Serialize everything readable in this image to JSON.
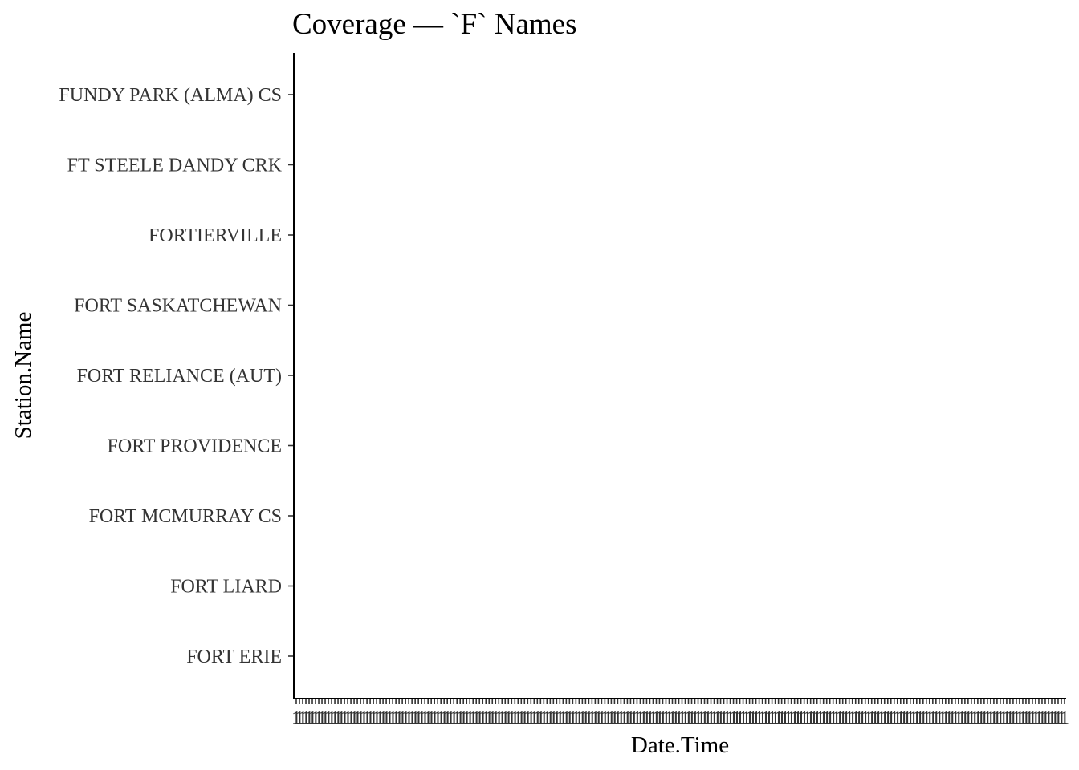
{
  "chart_data": {
    "type": "scatter",
    "title": "Coverage — `F` Names",
    "xlabel": "Date.Time",
    "ylabel": "Station.Name",
    "categories": [
      "FORT ERIE",
      "FORT LIARD",
      "FORT MCMURRAY CS",
      "FORT PROVIDENCE",
      "FORT RELIANCE (AUT)",
      "FORT SASKATCHEWAN",
      "FORTIERVILLE",
      "FT STEELE DANDY CRK",
      "FUNDY PARK (ALMA) CS"
    ],
    "x_tick_count": 240,
    "x_tick_label_glyph": "1",
    "points": [],
    "grid": false,
    "legend": "none",
    "colors": {
      "axis": "#000000",
      "tick": "#333333",
      "background": "#ffffff"
    }
  }
}
